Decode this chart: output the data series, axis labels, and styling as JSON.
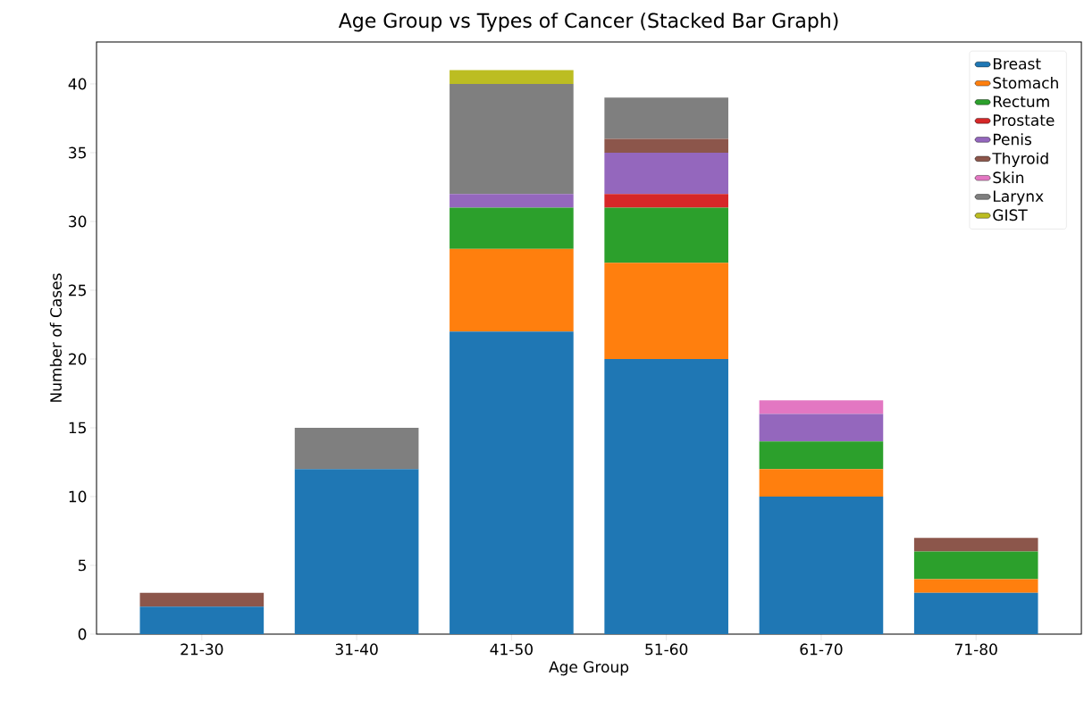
{
  "chart_data": {
    "type": "bar",
    "stacked": true,
    "title": "Age Group vs Types of Cancer (Stacked Bar Graph)",
    "xlabel": "Age Group",
    "ylabel": "Number of Cases",
    "categories": [
      "21-30",
      "31-40",
      "41-50",
      "51-60",
      "61-70",
      "71-80"
    ],
    "series": [
      {
        "name": "Breast",
        "color": "#1f77b4",
        "values": [
          2,
          12,
          22,
          20,
          10,
          3
        ]
      },
      {
        "name": "Stomach",
        "color": "#ff7f0e",
        "values": [
          0,
          0,
          6,
          7,
          2,
          1
        ]
      },
      {
        "name": "Rectum",
        "color": "#2ca02c",
        "values": [
          0,
          0,
          3,
          4,
          2,
          2
        ]
      },
      {
        "name": "Prostate",
        "color": "#d62728",
        "values": [
          0,
          0,
          0,
          1,
          0,
          0
        ]
      },
      {
        "name": "Penis",
        "color": "#9467bd",
        "values": [
          0,
          0,
          1,
          3,
          2,
          0
        ]
      },
      {
        "name": "Thyroid",
        "color": "#8c564b",
        "values": [
          1,
          0,
          0,
          1,
          0,
          1
        ]
      },
      {
        "name": "Skin",
        "color": "#e377c2",
        "values": [
          0,
          0,
          0,
          0,
          1,
          0
        ]
      },
      {
        "name": "Larynx",
        "color": "#7f7f7f",
        "values": [
          0,
          3,
          8,
          3,
          0,
          0
        ]
      },
      {
        "name": "GIST",
        "color": "#bcbd22",
        "values": [
          0,
          0,
          1,
          0,
          0,
          0
        ]
      }
    ],
    "ylim": [
      0,
      43.05
    ],
    "yticks": [
      0,
      5,
      10,
      15,
      20,
      25,
      30,
      35,
      40
    ],
    "legend": "top right",
    "grid": false
  }
}
